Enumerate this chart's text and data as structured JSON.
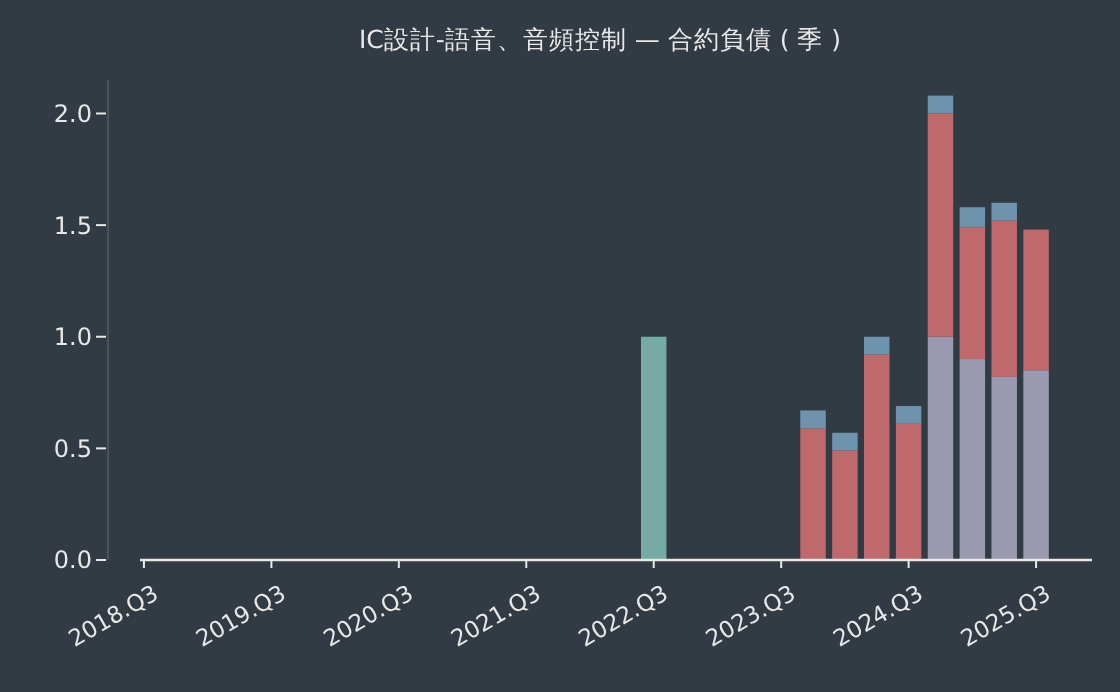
{
  "chart_data": {
    "type": "bar",
    "title": "IC設計-語音、音頻控制 — 合約負債 ( 季 )",
    "stacked": true,
    "categories": [
      "2018.Q3",
      null,
      null,
      null,
      "2019.Q3",
      null,
      null,
      null,
      "2020.Q3",
      null,
      null,
      null,
      "2021.Q3",
      null,
      null,
      null,
      "2022.Q3",
      null,
      null,
      null,
      "2023.Q3",
      null,
      null,
      null,
      "2024.Q3",
      null,
      null,
      null,
      "2025.Q3"
    ],
    "series": [
      {
        "color": "#9a99b2",
        "values": [
          null,
          null,
          null,
          null,
          null,
          null,
          null,
          null,
          null,
          null,
          null,
          null,
          null,
          null,
          null,
          null,
          null,
          null,
          null,
          null,
          null,
          null,
          null,
          null,
          null,
          1.0,
          0.9,
          0.82,
          0.85
        ]
      },
      {
        "color": "#c0696a",
        "values": [
          null,
          null,
          null,
          null,
          null,
          null,
          null,
          null,
          null,
          null,
          null,
          null,
          null,
          null,
          null,
          null,
          null,
          null,
          null,
          null,
          null,
          0.59,
          0.49,
          0.92,
          0.61,
          1.0,
          0.59,
          0.7,
          0.63
        ]
      },
      {
        "color": "#6f93ad",
        "values": [
          null,
          null,
          null,
          null,
          null,
          null,
          null,
          null,
          null,
          null,
          null,
          null,
          null,
          null,
          null,
          null,
          null,
          null,
          null,
          null,
          null,
          0.08,
          0.08,
          0.08,
          0.08,
          0.08,
          0.09,
          0.08,
          null
        ]
      },
      {
        "color": "#76aba3",
        "values": [
          null,
          null,
          null,
          null,
          null,
          null,
          null,
          null,
          null,
          null,
          null,
          null,
          null,
          null,
          null,
          null,
          1.0,
          null,
          null,
          null,
          null,
          null,
          null,
          null,
          null,
          null,
          null,
          null,
          null
        ]
      }
    ],
    "ylim": [
      0,
      2.15
    ],
    "yticks": [
      {
        "value": 0,
        "label": "0.0"
      },
      {
        "value": 0.5,
        "label": "0.5"
      },
      {
        "value": 1,
        "label": "1.0"
      },
      {
        "value": 1.5,
        "label": "1.5"
      },
      {
        "value": 2,
        "label": "2.0"
      }
    ],
    "grid": false
  }
}
